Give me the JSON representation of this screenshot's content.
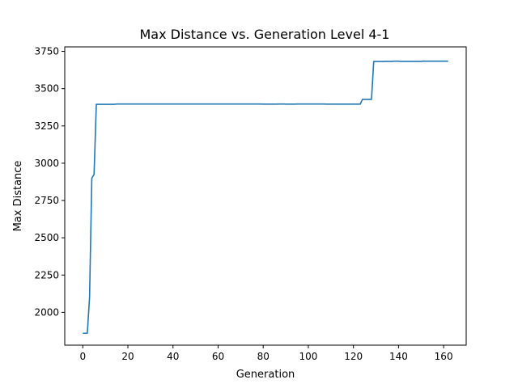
{
  "chart_data": {
    "type": "line",
    "title": "Max Distance vs. Generation Level 4-1",
    "xlabel": "Generation",
    "ylabel": "Max Distance",
    "xlim": [
      -8,
      170
    ],
    "ylim": [
      1780,
      3780
    ],
    "xticks": [
      0,
      20,
      40,
      60,
      80,
      100,
      120,
      140,
      160
    ],
    "yticks": [
      2000,
      2250,
      2500,
      2750,
      3000,
      3250,
      3500,
      3750
    ],
    "grid": false,
    "line_color": "#1f77b4",
    "series": [
      {
        "x": [
          0,
          2,
          3,
          4,
          5,
          6,
          14,
          15,
          79,
          80,
          86,
          87,
          89,
          90,
          94,
          95,
          107,
          108,
          123,
          124,
          125,
          128,
          129,
          130,
          133,
          134,
          137,
          138,
          140,
          141,
          150,
          151,
          152,
          162
        ],
        "values": [
          1860,
          1860,
          2100,
          2900,
          2925,
          3395,
          3395,
          3397,
          3397,
          3396,
          3396,
          3397,
          3397,
          3396,
          3396,
          3397,
          3397,
          3396,
          3396,
          3428,
          3428,
          3428,
          3682,
          3682,
          3682,
          3683,
          3683,
          3684,
          3684,
          3683,
          3683,
          3685,
          3684,
          3684
        ]
      }
    ]
  }
}
